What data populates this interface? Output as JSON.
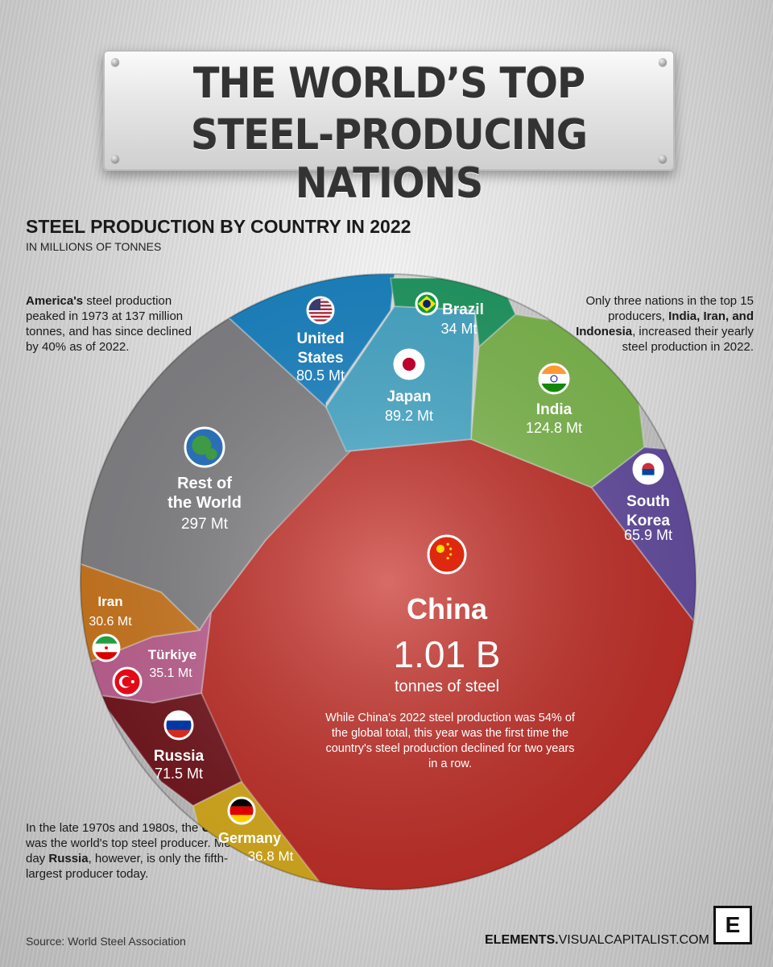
{
  "title": {
    "line1": "THE WORLD’S TOP",
    "line2": "STEEL-PRODUCING NATIONS"
  },
  "subtitle": "STEEL PRODUCTION BY COUNTRY IN 2022",
  "unit": "IN MILLIONS OF TONNES",
  "notes": {
    "america": {
      "bold": "America's",
      "text": " steel production peaked in 1973 at 137 million tonnes, and has since declined by 40% as of 2022."
    },
    "top15": {
      "pre": "Only three nations in the top 15 producers, ",
      "bold": "India, Iran, and Indonesia",
      "post": ", increased their yearly steel production in 2022."
    },
    "ussr": {
      "pre": "In the late 1970s and 1980s, the ",
      "bold1": "USSR",
      "mid": " was the world's top steel producer. Modern-day ",
      "bold2": "Russia",
      "post": ", however, is only the fifth-largest producer today."
    }
  },
  "china_callout": {
    "name": "China",
    "value": "1.01 B",
    "unit": "tonnes of steel",
    "note": "While China's 2022 steel production was 54% of the global total, this year was the first time the country's steel production declined for two years in a row."
  },
  "source": "Source: World Steel Association",
  "brand": {
    "bold": "ELEMENTS.",
    "rest": "VISUALCAPITALIST.COM"
  },
  "logo_letter": "E",
  "chart_data": {
    "type": "voronoi-treemap",
    "title": "STEEL PRODUCTION BY COUNTRY IN 2022",
    "unit": "IN MILLIONS OF TONNES",
    "series": [
      {
        "name": "China",
        "value": 1010,
        "label": "1.01 B",
        "color": "#c9322b",
        "flag": "china-flag-icon"
      },
      {
        "name": "Rest of the World",
        "value": 297,
        "label": "297 Mt",
        "color": "#8a8a8e",
        "flag": "globe-icon"
      },
      {
        "name": "India",
        "value": 124.8,
        "label": "124.8 Mt",
        "color": "#86c255",
        "flag": "india-flag-icon"
      },
      {
        "name": "Japan",
        "value": 89.2,
        "label": "89.2 Mt",
        "color": "#4db3d4",
        "flag": "japan-flag-icon"
      },
      {
        "name": "United States",
        "value": 80.5,
        "label": "80.5 Mt",
        "color": "#1f8dcf",
        "flag": "usa-flag-icon"
      },
      {
        "name": "Russia",
        "value": 71.5,
        "label": "71.5 Mt",
        "color": "#7a1a22",
        "flag": "russia-flag-icon"
      },
      {
        "name": "South Korea",
        "value": 65.9,
        "label": "65.9 Mt",
        "color": "#6a52a8",
        "flag": "south-korea-flag-icon"
      },
      {
        "name": "Germany",
        "value": 36.8,
        "label": "36.8 Mt",
        "color": "#e1b421",
        "flag": "germany-flag-icon"
      },
      {
        "name": "Türkiye",
        "value": 35.1,
        "label": "35.1 Mt",
        "color": "#c9689a",
        "flag": "turkiye-flag-icon"
      },
      {
        "name": "Brazil",
        "value": 34,
        "label": "34 Mt",
        "color": "#26a36a",
        "flag": "brazil-flag-icon"
      },
      {
        "name": "Iran",
        "value": 30.6,
        "label": "30.6 Mt",
        "color": "#d67f22",
        "flag": "iran-flag-icon"
      }
    ]
  }
}
